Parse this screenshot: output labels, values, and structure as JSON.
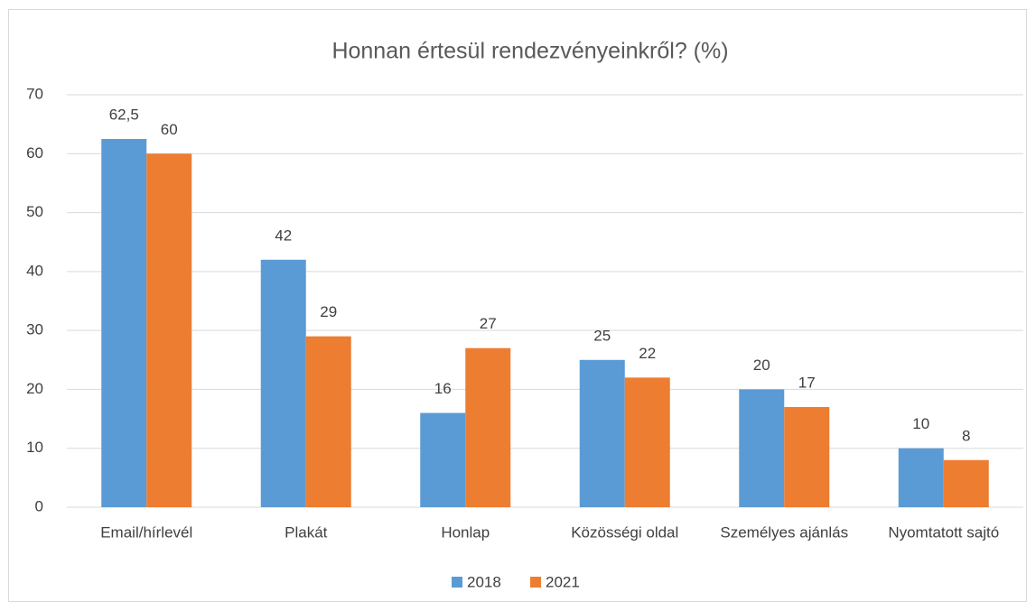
{
  "chart_data": {
    "type": "bar",
    "title": "Honnan értesül rendezvényeinkről? (%)",
    "categories": [
      "Email/hírlevél",
      "Plakát",
      "Honlap",
      "Közösségi oldal",
      "Személyes ajánlás",
      "Nyomtatott sajtó"
    ],
    "series": [
      {
        "name": "2018",
        "color": "#5b9bd5",
        "values": [
          62.5,
          42,
          16,
          25,
          20,
          10
        ],
        "value_labels": [
          "62,5",
          "42",
          "16",
          "25",
          "20",
          "10"
        ]
      },
      {
        "name": "2021",
        "color": "#ed7d31",
        "values": [
          60,
          29,
          27,
          22,
          17,
          8
        ],
        "value_labels": [
          "60",
          "29",
          "27",
          "22",
          "17",
          "8"
        ]
      }
    ],
    "ylim": [
      0,
      70
    ],
    "yticks": [
      0,
      10,
      20,
      30,
      40,
      50,
      60,
      70
    ],
    "grid": true,
    "legend": "bottom"
  }
}
